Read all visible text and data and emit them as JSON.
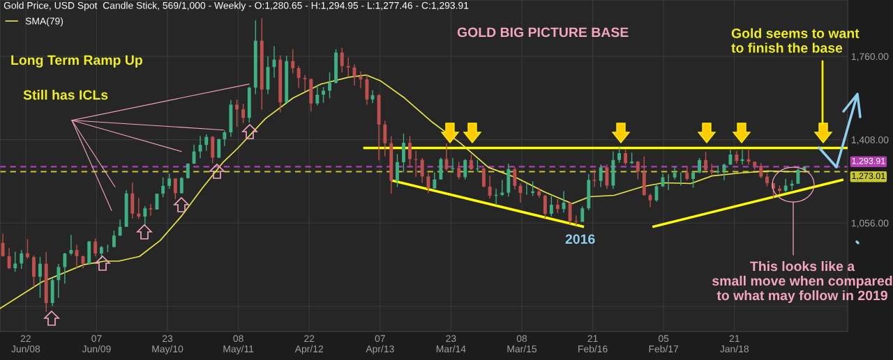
{
  "chart_data": {
    "type": "candlestick",
    "title": "Gold Price, USD Spot",
    "subtitle": "Candle Stick, 569/1,000 - Weekly - O:1,280.65 - H:1,294.95 - L:1,277.46 - C:1,293.91",
    "annotations": [
      "GOLD BIG PICTURE BASE",
      "Long Term Ramp Up",
      "Still has ICLs",
      "Gold seems to want\nto finish the base",
      "2016",
      "This looks like a\nsmall move when compared\nto what may follow in 2019"
    ],
    "x": [
      "2008-03",
      "2008-04",
      "2008-05",
      "2008-06",
      "2008-07",
      "2008-08",
      "2008-09",
      "2008-10",
      "2008-11",
      "2008-12",
      "2009-01",
      "2009-02",
      "2009-03",
      "2009-04",
      "2009-05",
      "2009-06",
      "2009-07",
      "2009-08",
      "2009-09",
      "2009-10",
      "2009-11",
      "2009-12",
      "2010-01",
      "2010-02",
      "2010-03",
      "2010-04",
      "2010-05",
      "2010-06",
      "2010-07",
      "2010-08",
      "2010-09",
      "2010-10",
      "2010-11",
      "2010-12",
      "2011-01",
      "2011-02",
      "2011-03",
      "2011-04",
      "2011-05",
      "2011-06",
      "2011-07",
      "2011-08",
      "2011-09",
      "2011-10",
      "2011-11",
      "2011-12",
      "2012-01",
      "2012-02",
      "2012-03",
      "2012-04",
      "2012-05",
      "2012-06",
      "2012-07",
      "2012-08",
      "2012-09",
      "2012-10",
      "2012-11",
      "2012-12",
      "2013-01",
      "2013-02",
      "2013-03",
      "2013-04",
      "2013-05",
      "2013-06",
      "2013-07",
      "2013-08",
      "2013-09",
      "2013-10",
      "2013-11",
      "2013-12",
      "2014-01",
      "2014-02",
      "2014-03",
      "2014-04",
      "2014-05",
      "2014-06",
      "2014-07",
      "2014-08",
      "2014-09",
      "2014-10",
      "2014-11",
      "2014-12",
      "2015-01",
      "2015-02",
      "2015-03",
      "2015-04",
      "2015-05",
      "2015-06",
      "2015-07",
      "2015-08",
      "2015-09",
      "2015-10",
      "2015-11",
      "2015-12",
      "2016-01",
      "2016-02",
      "2016-03",
      "2016-04",
      "2016-05",
      "2016-06",
      "2016-07",
      "2016-08",
      "2016-09",
      "2016-10",
      "2016-11",
      "2016-12",
      "2017-01",
      "2017-02",
      "2017-03",
      "2017-04",
      "2017-05",
      "2017-06",
      "2017-07",
      "2017-08",
      "2017-09",
      "2017-10",
      "2017-11",
      "2017-12",
      "2018-01",
      "2018-02",
      "2018-03",
      "2018-04",
      "2018-05",
      "2018-06",
      "2018-07",
      "2018-08",
      "2018-09",
      "2018-10",
      "2018-11",
      "2018-12",
      "2019-01"
    ],
    "ohlc": [
      [
        972,
        1011,
        914,
        916
      ],
      [
        916,
        950,
        862,
        865
      ],
      [
        865,
        935,
        850,
        885
      ],
      [
        885,
        942,
        863,
        928
      ],
      [
        928,
        988,
        905,
        912
      ],
      [
        912,
        919,
        786,
        829
      ],
      [
        829,
        913,
        740,
        884
      ],
      [
        884,
        933,
        681,
        718
      ],
      [
        718,
        825,
        705,
        815
      ],
      [
        815,
        883,
        740,
        870
      ],
      [
        870,
        930,
        800,
        927
      ],
      [
        927,
        1006,
        920,
        942
      ],
      [
        942,
        964,
        866,
        916
      ],
      [
        916,
        918,
        865,
        884
      ],
      [
        884,
        980,
        880,
        978
      ],
      [
        978,
        990,
        915,
        927
      ],
      [
        927,
        960,
        905,
        954
      ],
      [
        954,
        965,
        933,
        955
      ],
      [
        955,
        1024,
        953,
        1003
      ],
      [
        1003,
        1070,
        1002,
        1040
      ],
      [
        1040,
        1195,
        1040,
        1181
      ],
      [
        1181,
        1227,
        1075,
        1096
      ],
      [
        1096,
        1162,
        1073,
        1083
      ],
      [
        1083,
        1128,
        1044,
        1118
      ],
      [
        1118,
        1136,
        1087,
        1113
      ],
      [
        1113,
        1180,
        1113,
        1180
      ],
      [
        1180,
        1249,
        1165,
        1213
      ],
      [
        1213,
        1265,
        1200,
        1244
      ],
      [
        1244,
        1245,
        1157,
        1182
      ],
      [
        1182,
        1250,
        1180,
        1246
      ],
      [
        1246,
        1308,
        1243,
        1307
      ],
      [
        1307,
        1387,
        1305,
        1358
      ],
      [
        1358,
        1424,
        1330,
        1386
      ],
      [
        1386,
        1431,
        1361,
        1420
      ],
      [
        1420,
        1424,
        1308,
        1332
      ],
      [
        1332,
        1412,
        1330,
        1410
      ],
      [
        1410,
        1447,
        1381,
        1439
      ],
      [
        1439,
        1576,
        1420,
        1556
      ],
      [
        1556,
        1577,
        1462,
        1536
      ],
      [
        1536,
        1560,
        1478,
        1500
      ],
      [
        1500,
        1632,
        1480,
        1628
      ],
      [
        1628,
        1912,
        1600,
        1826
      ],
      [
        1826,
        1921,
        1535,
        1620
      ],
      [
        1620,
        1760,
        1600,
        1715
      ],
      [
        1715,
        1803,
        1670,
        1746
      ],
      [
        1746,
        1764,
        1523,
        1566
      ],
      [
        1566,
        1763,
        1565,
        1740
      ],
      [
        1740,
        1791,
        1688,
        1710
      ],
      [
        1710,
        1720,
        1627,
        1669
      ],
      [
        1669,
        1682,
        1613,
        1664
      ],
      [
        1664,
        1667,
        1527,
        1561
      ],
      [
        1561,
        1641,
        1553,
        1598
      ],
      [
        1598,
        1630,
        1564,
        1615
      ],
      [
        1615,
        1692,
        1583,
        1648
      ],
      [
        1648,
        1790,
        1645,
        1776
      ],
      [
        1776,
        1796,
        1692,
        1719
      ],
      [
        1719,
        1755,
        1673,
        1713
      ],
      [
        1713,
        1726,
        1636,
        1675
      ],
      [
        1675,
        1696,
        1626,
        1663
      ],
      [
        1663,
        1680,
        1555,
        1578
      ],
      [
        1578,
        1617,
        1563,
        1596
      ],
      [
        1596,
        1600,
        1321,
        1472
      ],
      [
        1472,
        1488,
        1338,
        1393
      ],
      [
        1393,
        1423,
        1180,
        1234
      ],
      [
        1234,
        1347,
        1208,
        1313
      ],
      [
        1313,
        1434,
        1270,
        1395
      ],
      [
        1395,
        1424,
        1291,
        1326
      ],
      [
        1326,
        1361,
        1251,
        1323
      ],
      [
        1323,
        1330,
        1226,
        1253
      ],
      [
        1253,
        1267,
        1182,
        1202
      ],
      [
        1202,
        1270,
        1202,
        1240
      ],
      [
        1240,
        1332,
        1240,
        1326
      ],
      [
        1326,
        1392,
        1277,
        1284
      ],
      [
        1284,
        1331,
        1268,
        1288
      ],
      [
        1288,
        1315,
        1241,
        1250
      ],
      [
        1250,
        1326,
        1240,
        1322
      ],
      [
        1322,
        1345,
        1281,
        1283
      ],
      [
        1283,
        1322,
        1272,
        1286
      ],
      [
        1286,
        1290,
        1206,
        1210
      ],
      [
        1210,
        1256,
        1160,
        1171
      ],
      [
        1171,
        1200,
        1131,
        1175
      ],
      [
        1175,
        1238,
        1170,
        1184
      ],
      [
        1184,
        1307,
        1167,
        1284
      ],
      [
        1284,
        1293,
        1197,
        1213
      ],
      [
        1213,
        1223,
        1142,
        1183
      ],
      [
        1183,
        1224,
        1175,
        1183
      ],
      [
        1183,
        1232,
        1170,
        1190
      ],
      [
        1190,
        1205,
        1162,
        1172
      ],
      [
        1172,
        1175,
        1077,
        1095
      ],
      [
        1095,
        1170,
        1084,
        1133
      ],
      [
        1133,
        1157,
        1098,
        1115
      ],
      [
        1115,
        1191,
        1100,
        1142
      ],
      [
        1142,
        1143,
        1052,
        1064
      ],
      [
        1064,
        1088,
        1046,
        1061
      ],
      [
        1061,
        1127,
        1061,
        1118
      ],
      [
        1118,
        1263,
        1110,
        1238
      ],
      [
        1238,
        1283,
        1208,
        1234
      ],
      [
        1234,
        1303,
        1208,
        1291
      ],
      [
        1291,
        1304,
        1200,
        1214
      ],
      [
        1214,
        1358,
        1200,
        1322
      ],
      [
        1322,
        1375,
        1310,
        1351
      ],
      [
        1351,
        1367,
        1302,
        1309
      ],
      [
        1309,
        1353,
        1305,
        1316
      ],
      [
        1316,
        1317,
        1241,
        1273
      ],
      [
        1273,
        1337,
        1171,
        1174
      ],
      [
        1174,
        1180,
        1123,
        1152
      ],
      [
        1152,
        1220,
        1146,
        1211
      ],
      [
        1211,
        1264,
        1208,
        1249
      ],
      [
        1249,
        1262,
        1195,
        1249
      ],
      [
        1249,
        1295,
        1240,
        1268
      ],
      [
        1268,
        1270,
        1214,
        1268
      ],
      [
        1268,
        1296,
        1236,
        1242
      ],
      [
        1242,
        1270,
        1205,
        1269
      ],
      [
        1269,
        1331,
        1267,
        1322
      ],
      [
        1322,
        1357,
        1275,
        1280
      ],
      [
        1280,
        1306,
        1260,
        1271
      ],
      [
        1271,
        1299,
        1264,
        1275
      ],
      [
        1275,
        1307,
        1237,
        1303
      ],
      [
        1303,
        1366,
        1302,
        1345
      ],
      [
        1345,
        1361,
        1307,
        1318
      ],
      [
        1318,
        1365,
        1303,
        1325
      ],
      [
        1325,
        1365,
        1302,
        1315
      ],
      [
        1315,
        1316,
        1281,
        1298
      ],
      [
        1298,
        1309,
        1245,
        1252
      ],
      [
        1252,
        1266,
        1211,
        1224
      ],
      [
        1224,
        1224,
        1160,
        1201
      ],
      [
        1201,
        1214,
        1180,
        1192
      ],
      [
        1192,
        1243,
        1182,
        1214
      ],
      [
        1214,
        1237,
        1196,
        1222
      ],
      [
        1222,
        1285,
        1221,
        1281
      ],
      [
        1280.65,
        1294.95,
        1277.46,
        1293.91
      ]
    ],
    "series": [
      {
        "name": "SMA(79)",
        "type": "line",
        "color": "#e8e84a",
        "x": [
          "2008-02-16",
          "2008-09-09",
          "2009-04-04",
          "2009-07-17",
          "2009-09-24",
          "2010-01-05",
          "2010-04-18",
          "2010-07-31",
          "2010-11-11",
          "2011-02-23",
          "2011-05-03",
          "2011-09-18",
          "2012-02-02",
          "2012-06-19",
          "2012-11-03",
          "2013-01-29",
          "2013-04-08",
          "2013-08-06",
          "2013-12-22",
          "2014-05-09",
          "2014-09-24",
          "2015-02-09",
          "2015-06-27",
          "2015-11-12",
          "2016-02-06",
          "2016-06-06",
          "2016-10-22",
          "2017-02-02",
          "2017-06-20",
          "2017-10-02",
          "2018-02-16",
          "2018-07-04",
          "2018-10-16",
          "2019-01-06"
        ],
        "values": [
          695,
          807,
          880,
          895,
          895,
          915,
          983,
          1085,
          1203,
          1314,
          1370,
          1496,
          1584,
          1643,
          1672,
          1681,
          1657,
          1584,
          1481,
          1393,
          1291,
          1247,
          1188,
          1138,
          1167,
          1173,
          1209,
          1226,
          1223,
          1255,
          1267,
          1276,
          1273,
          1273
        ]
      },
      {
        "type": "line",
        "color": "#ffff00",
        "x": [
          "2013-01-20",
          "2019-08-03"
        ],
        "values": [
          1373,
          1373
        ]
      },
      {
        "type": "line",
        "color": "#ffff00",
        "x": [
          "2013-06-09",
          "2016-01-03"
        ],
        "values": [
          1235,
          1041
        ]
      },
      {
        "type": "line",
        "color": "#ffff00",
        "x": [
          "2016-12-18",
          "2019-07-07"
        ],
        "values": [
          1041,
          1238
        ]
      },
      {
        "type": "line",
        "color": "#f4a6c0",
        "x": [
          "2009-02-05",
          "2011-06-30"
        ],
        "values": [
          1490,
          1643
        ]
      },
      {
        "type": "line",
        "color": "#f4a6c0",
        "x": [
          "2009-02-05",
          "2011-02-23"
        ],
        "values": [
          1490,
          1449
        ]
      },
      {
        "type": "line",
        "color": "#f4a6c0",
        "x": [
          "2009-02-05",
          "2010-07-31"
        ],
        "values": [
          1490,
          1358
        ]
      },
      {
        "type": "line",
        "color": "#f4a6c0",
        "x": [
          "2009-02-05",
          "2009-09-06"
        ],
        "values": [
          1490,
          1209
        ]
      },
      {
        "type": "line",
        "color": "#f4a6c0",
        "x": [
          "2009-02-05",
          "2009-08-20"
        ],
        "values": [
          1490,
          1109
        ]
      }
    ],
    "ref_lines": [
      {
        "axis": "y",
        "value": 1293.91,
        "label": "1,293.91",
        "color": "#b040b0",
        "line_style": "dashed"
      },
      {
        "axis": "y",
        "value": 1273.01,
        "label": "1,273.01",
        "color": "#c8c830",
        "line_style": "dashed"
      }
    ],
    "xlim": [
      "2008-02-16",
      "2019-08-03"
    ],
    "xticks": [
      {
        "value": "2008-06-22",
        "label": "22\nJun/08"
      },
      {
        "value": "2009-06-07",
        "label": "07\nJun/09"
      },
      {
        "value": "2010-05-23",
        "label": "23\nMay/10"
      },
      {
        "value": "2011-05-08",
        "label": "08\nMay/11"
      },
      {
        "value": "2012-04-22",
        "label": "22\nApr/12"
      },
      {
        "value": "2013-04-07",
        "label": "07\nApr/13"
      },
      {
        "value": "2014-03-23",
        "label": "23\nMar/14"
      },
      {
        "value": "2015-03-08",
        "label": "08\nMar/15"
      },
      {
        "value": "2016-02-21",
        "label": "21\nFeb/16"
      },
      {
        "value": "2017-02-05",
        "label": "05\nFeb/17"
      },
      {
        "value": "2018-01-21",
        "label": "21\nJan/18"
      }
    ],
    "ylim": [
      598,
      1998
    ],
    "yticks": [
      {
        "value": 704,
        "label": null
      },
      {
        "value": 1056,
        "label": "1,056.00"
      },
      {
        "value": 1408,
        "label": "1,408.00"
      },
      {
        "value": 1760,
        "label": "1,760.00"
      }
    ],
    "grid": true,
    "legend": "top left"
  }
}
